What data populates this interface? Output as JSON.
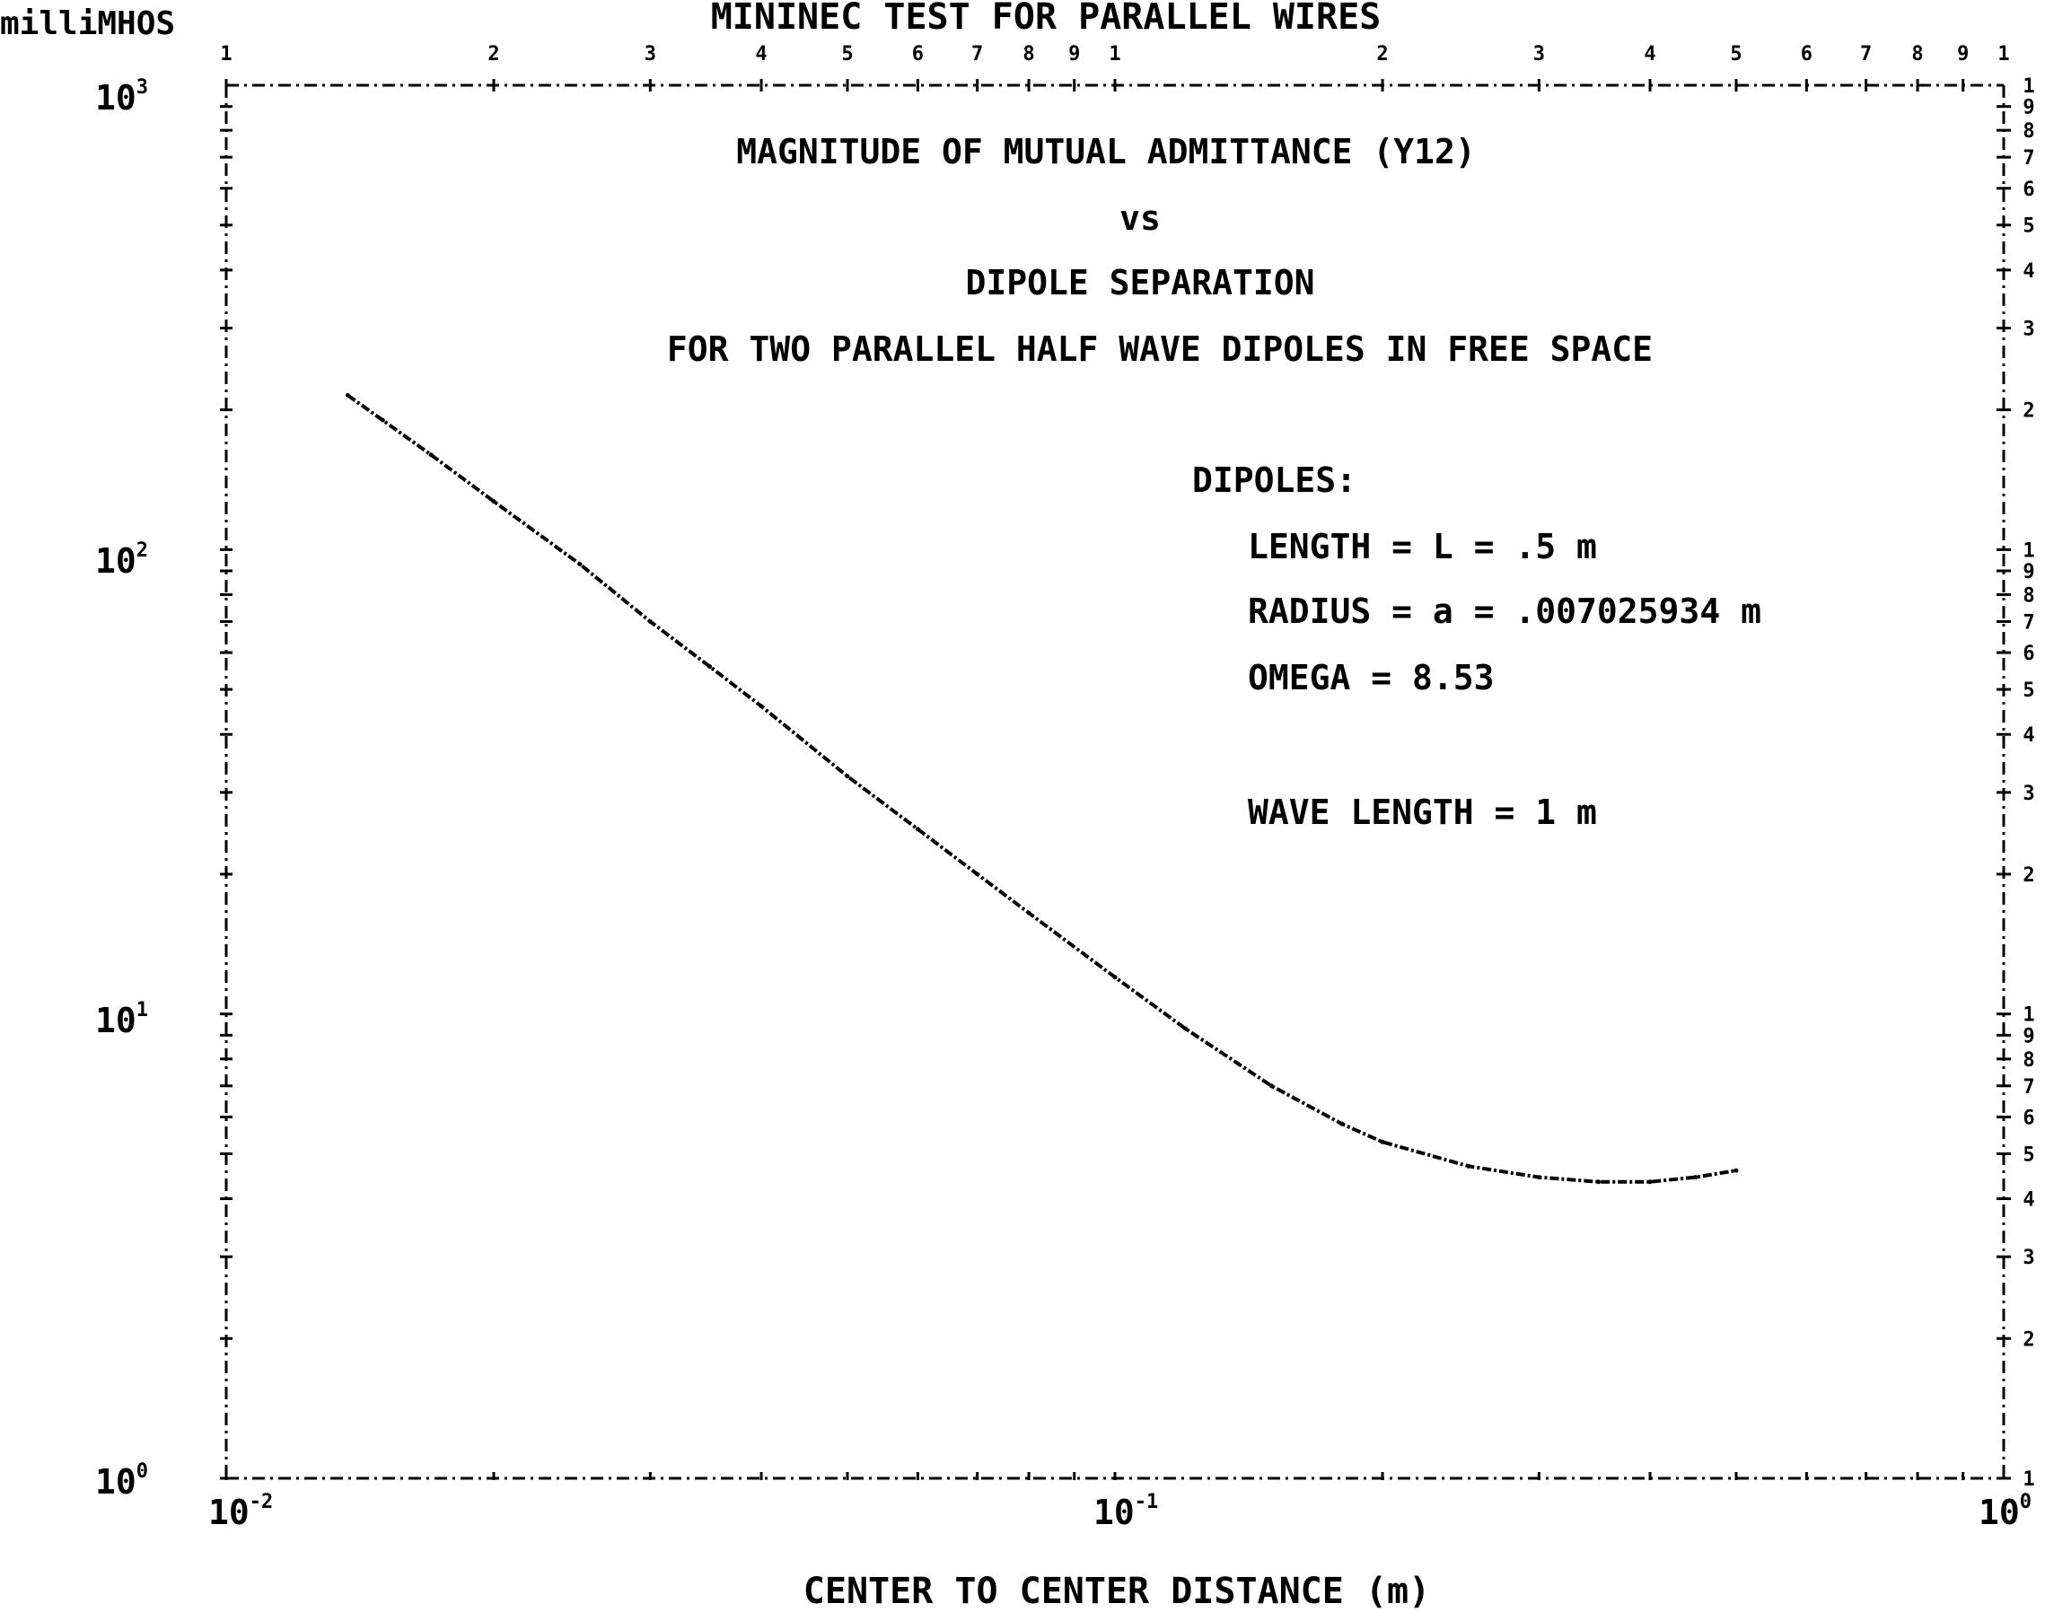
{
  "chart_data": {
    "type": "line",
    "title": "MININEC TEST FOR PARALLEL WIRES",
    "subtitle_lines": [
      "MAGNITUDE OF MUTUAL ADMITTANCE (Y12)",
      "vs",
      "DIPOLE SEPARATION",
      "FOR TWO PARALLEL HALF WAVE DIPOLES IN FREE SPACE"
    ],
    "ylabel": "milliMHOS",
    "xlabel": "CENTER TO CENTER DISTANCE (m)",
    "xscale": "log",
    "yscale": "log",
    "xlim": [
      0.01,
      1
    ],
    "ylim": [
      1,
      1000
    ],
    "grid": false,
    "x_tick_labels": [
      {
        "base": "10",
        "exp": "-2"
      },
      {
        "base": "10",
        "exp": "-1"
      },
      {
        "base": "10",
        "exp": "0"
      }
    ],
    "y_tick_labels": [
      {
        "base": "10",
        "exp": "0"
      },
      {
        "base": "10",
        "exp": "1"
      },
      {
        "base": "10",
        "exp": "2"
      },
      {
        "base": "10",
        "exp": "3"
      }
    ],
    "minor_tick_labels": [
      "1",
      "2",
      "3",
      "4",
      "5",
      "6",
      "7",
      "8",
      "9"
    ],
    "annotations": [
      "DIPOLES:",
      "LENGTH = L = .5 m",
      "RADIUS = a = .007025934 m",
      "OMEGA = 8.53",
      "WAVE LENGTH = 1 m"
    ],
    "series": [
      {
        "x": [
          0.0137,
          0.015,
          0.017,
          0.02,
          0.025,
          0.03,
          0.035,
          0.04,
          0.05,
          0.06,
          0.07,
          0.08,
          0.1,
          0.12,
          0.15,
          0.18,
          0.2,
          0.25,
          0.3,
          0.35,
          0.4,
          0.45,
          0.5
        ],
        "y": [
          215,
          190,
          160,
          127,
          93,
          70,
          56,
          46,
          32.5,
          25,
          20,
          16.5,
          12,
          9.3,
          7,
          5.8,
          5.3,
          4.7,
          4.45,
          4.35,
          4.35,
          4.45,
          4.6
        ]
      }
    ]
  }
}
